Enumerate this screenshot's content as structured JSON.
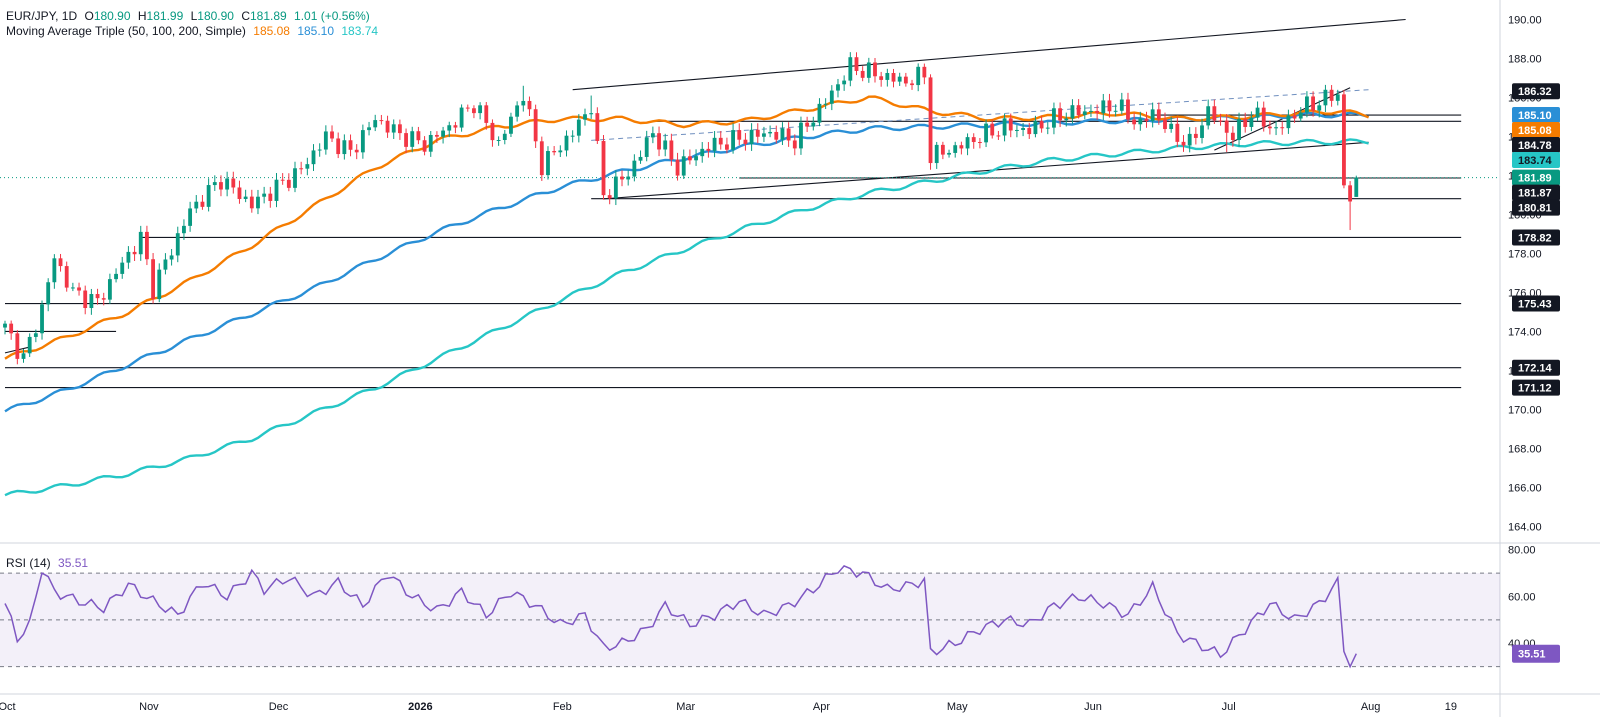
{
  "header": {
    "symbol": "EUR/JPY, 1D",
    "open_label": "O",
    "open": "180.90",
    "high_label": "H",
    "high": "181.99",
    "low_label": "L",
    "low": "180.90",
    "close_label": "C",
    "close": "181.89",
    "change": "1.01 (+0.56%)",
    "ma_title": "Moving Average Triple (50, 100, 200, Simple)",
    "ma50": "185.08",
    "ma100": "185.10",
    "ma200": "183.74",
    "rsi_title": "RSI (14)",
    "rsi": "35.51"
  },
  "colors": {
    "up": "#089981",
    "down": "#f23645",
    "ma50": "#f57c00",
    "ma100": "#2a8fd6",
    "ma200": "#26c6c6",
    "rsi": "#7e57c2",
    "trend": "#131722",
    "channel_mid": "#6f8fbf"
  },
  "chart_data": {
    "type": "candlestick",
    "y_ticks": [
      "190.00",
      "188.00",
      "186.00",
      "184.00",
      "182.00",
      "180.00",
      "178.00",
      "176.00",
      "174.00",
      "172.00",
      "170.00",
      "168.00",
      "166.00",
      "164.00"
    ],
    "ylim": [
      163.2,
      191.0
    ],
    "x_labels": [
      {
        "label": "Oct",
        "bar": 0
      },
      {
        "label": "Nov",
        "bar": 23
      },
      {
        "label": "Dec",
        "bar": 44
      },
      {
        "label": "2026",
        "bar": 67
      },
      {
        "label": "Feb",
        "bar": 90
      },
      {
        "label": "Mar",
        "bar": 110
      },
      {
        "label": "Apr",
        "bar": 132
      },
      {
        "label": "May",
        "bar": 154
      },
      {
        "label": "Jun",
        "bar": 176
      },
      {
        "label": "Jul",
        "bar": 198
      },
      {
        "label": "Aug",
        "bar": 221
      },
      {
        "label": "19",
        "bar": 234
      }
    ],
    "bar_count": 236,
    "price_anchors": [
      [
        0,
        174.2
      ],
      [
        3,
        172.6
      ],
      [
        6,
        175.2
      ],
      [
        8,
        177.8
      ],
      [
        11,
        176.0
      ],
      [
        15,
        175.5
      ],
      [
        19,
        177.5
      ],
      [
        22,
        178.8
      ],
      [
        24,
        176.2
      ],
      [
        30,
        180.2
      ],
      [
        35,
        181.8
      ],
      [
        40,
        180.5
      ],
      [
        48,
        182.3
      ],
      [
        52,
        184.0
      ],
      [
        56,
        183.2
      ],
      [
        60,
        184.9
      ],
      [
        64,
        184.1
      ],
      [
        68,
        183.6
      ],
      [
        72,
        184.5
      ],
      [
        76,
        185.7
      ],
      [
        80,
        183.6
      ],
      [
        84,
        186.2
      ],
      [
        87,
        182.5
      ],
      [
        92,
        184.2
      ],
      [
        95,
        185.6
      ],
      [
        97,
        181.0
      ],
      [
        101,
        182.1
      ],
      [
        105,
        184.2
      ],
      [
        109,
        182.4
      ],
      [
        114,
        183.5
      ],
      [
        119,
        183.9
      ],
      [
        124,
        184.2
      ],
      [
        128,
        183.8
      ],
      [
        133,
        185.8
      ],
      [
        137,
        187.6
      ],
      [
        141,
        187.2
      ],
      [
        146,
        186.8
      ],
      [
        149,
        187.2
      ],
      [
        150,
        183.0
      ],
      [
        154,
        183.4
      ],
      [
        158,
        184.0
      ],
      [
        162,
        184.5
      ],
      [
        166,
        184.3
      ],
      [
        172,
        185.2
      ],
      [
        176,
        185.3
      ],
      [
        180,
        185.6
      ],
      [
        184,
        184.6
      ],
      [
        186,
        185.3
      ],
      [
        189,
        184.2
      ],
      [
        192,
        183.6
      ],
      [
        195,
        185.3
      ],
      [
        199,
        184.0
      ],
      [
        202,
        185.2
      ],
      [
        206,
        184.3
      ],
      [
        210,
        185.4
      ],
      [
        213,
        185.8
      ],
      [
        216,
        186.2
      ],
      [
        217,
        181.4
      ],
      [
        218,
        180.8
      ],
      [
        219,
        181.89
      ]
    ],
    "candle_wick_spikes": [
      [
        84,
        186.6
      ],
      [
        150,
        186.2
      ],
      [
        198,
        183.2
      ],
      [
        218,
        179.2
      ],
      [
        3,
        173.1
      ],
      [
        95,
        186.1
      ]
    ],
    "ma50": [
      [
        0,
        172.6
      ],
      [
        10,
        173.7
      ],
      [
        20,
        175.0
      ],
      [
        30,
        176.6
      ],
      [
        40,
        178.4
      ],
      [
        50,
        180.4
      ],
      [
        60,
        182.4
      ],
      [
        70,
        183.8
      ],
      [
        80,
        184.5
      ],
      [
        90,
        184.9
      ],
      [
        100,
        184.9
      ],
      [
        110,
        184.6
      ],
      [
        120,
        184.8
      ],
      [
        130,
        185.4
      ],
      [
        140,
        186.0
      ],
      [
        150,
        185.3
      ],
      [
        160,
        184.9
      ],
      [
        170,
        185.0
      ],
      [
        180,
        185.2
      ],
      [
        190,
        184.9
      ],
      [
        200,
        185.0
      ],
      [
        210,
        185.2
      ],
      [
        216,
        185.3
      ],
      [
        221,
        185.08
      ]
    ],
    "ma100": [
      [
        0,
        169.9
      ],
      [
        10,
        171.0
      ],
      [
        20,
        172.3
      ],
      [
        30,
        173.6
      ],
      [
        40,
        174.9
      ],
      [
        50,
        176.2
      ],
      [
        60,
        177.7
      ],
      [
        70,
        179.1
      ],
      [
        80,
        180.3
      ],
      [
        90,
        181.4
      ],
      [
        100,
        182.2
      ],
      [
        110,
        182.9
      ],
      [
        120,
        183.5
      ],
      [
        130,
        184.0
      ],
      [
        140,
        184.4
      ],
      [
        150,
        184.5
      ],
      [
        160,
        184.6
      ],
      [
        170,
        184.7
      ],
      [
        180,
        184.8
      ],
      [
        190,
        184.9
      ],
      [
        200,
        184.95
      ],
      [
        210,
        185.1
      ],
      [
        221,
        185.1
      ]
    ],
    "ma200": [
      [
        0,
        165.6
      ],
      [
        10,
        166.1
      ],
      [
        20,
        166.7
      ],
      [
        30,
        167.5
      ],
      [
        40,
        168.5
      ],
      [
        50,
        169.8
      ],
      [
        60,
        171.1
      ],
      [
        70,
        172.6
      ],
      [
        80,
        174.1
      ],
      [
        90,
        175.6
      ],
      [
        100,
        177.0
      ],
      [
        110,
        178.2
      ],
      [
        120,
        179.3
      ],
      [
        130,
        180.3
      ],
      [
        140,
        181.1
      ],
      [
        150,
        181.7
      ],
      [
        160,
        182.3
      ],
      [
        170,
        182.8
      ],
      [
        180,
        183.1
      ],
      [
        190,
        183.4
      ],
      [
        200,
        183.6
      ],
      [
        210,
        183.7
      ],
      [
        221,
        183.74
      ]
    ],
    "trendlines": [
      {
        "from": [
          0,
          172.9
        ],
        "to": [
          4,
          173.2
        ]
      },
      {
        "from": [
          0,
          174.0
        ],
        "to": [
          18,
          174.0
        ]
      },
      {
        "from": [
          22,
          178.82
        ],
        "to": [
          236,
          178.82
        ]
      },
      {
        "from": [
          95,
          180.81
        ],
        "to": [
          236,
          180.81
        ]
      },
      {
        "from": [
          119,
          181.87
        ],
        "to": [
          236,
          181.87
        ]
      },
      {
        "from": [
          105,
          184.78
        ],
        "to": [
          236,
          184.78
        ]
      },
      {
        "from": [
          186,
          185.1
        ],
        "to": [
          236,
          185.1
        ]
      },
      {
        "from": [
          0,
          175.43
        ],
        "to": [
          236,
          175.43
        ]
      },
      {
        "from": [
          0,
          172.14
        ],
        "to": [
          236,
          172.14
        ]
      },
      {
        "from": [
          0,
          171.12
        ],
        "to": [
          236,
          171.12
        ]
      },
      {
        "from": [
          92,
          186.4
        ],
        "to": [
          227,
          190.0
        ]
      },
      {
        "from": [
          97,
          180.8
        ],
        "to": [
          221,
          183.7
        ]
      },
      {
        "from": [
          196,
          183.3
        ],
        "to": [
          218,
          186.5
        ]
      }
    ],
    "channel_mid": {
      "from": [
        95,
        183.8
      ],
      "to": [
        221,
        186.4
      ]
    },
    "price_badges": [
      {
        "label": "186.32",
        "value": 186.32,
        "kind": "dark"
      },
      {
        "label": "185.10",
        "value": 185.1,
        "kind": "ma100"
      },
      {
        "label": "185.08",
        "value": 185.08,
        "kind": "ma50"
      },
      {
        "label": "184.78",
        "value": 184.78,
        "kind": "dark"
      },
      {
        "label": "183.74",
        "value": 183.74,
        "kind": "ma200"
      },
      {
        "label": "181.89",
        "value": 181.89,
        "kind": "close"
      },
      {
        "label": "181.87",
        "value": 181.87,
        "kind": "dark"
      },
      {
        "label": "180.81",
        "value": 180.81,
        "kind": "dark"
      },
      {
        "label": "178.82",
        "value": 178.82,
        "kind": "dark"
      },
      {
        "label": "175.43",
        "value": 175.43,
        "kind": "dark"
      },
      {
        "label": "172.14",
        "value": 172.14,
        "kind": "dark"
      },
      {
        "label": "171.12",
        "value": 171.12,
        "kind": "dark"
      }
    ],
    "rsi": {
      "y_ticks": [
        "80.00",
        "60.00",
        "40.00"
      ],
      "ylim": [
        20,
        82
      ],
      "levels": [
        70,
        50,
        30
      ],
      "values": [
        [
          0,
          57
        ],
        [
          2,
          42
        ],
        [
          4,
          48
        ],
        [
          6,
          72
        ],
        [
          8,
          62
        ],
        [
          12,
          58
        ],
        [
          16,
          55
        ],
        [
          20,
          65
        ],
        [
          24,
          58
        ],
        [
          28,
          52
        ],
        [
          32,
          66
        ],
        [
          36,
          60
        ],
        [
          40,
          70
        ],
        [
          42,
          63
        ],
        [
          46,
          68
        ],
        [
          50,
          60
        ],
        [
          54,
          66
        ],
        [
          58,
          56
        ],
        [
          62,
          70
        ],
        [
          66,
          60
        ],
        [
          70,
          54
        ],
        [
          74,
          62
        ],
        [
          78,
          52
        ],
        [
          82,
          62
        ],
        [
          86,
          56
        ],
        [
          90,
          48
        ],
        [
          94,
          52
        ],
        [
          97,
          38
        ],
        [
          100,
          40
        ],
        [
          104,
          46
        ],
        [
          107,
          56
        ],
        [
          111,
          48
        ],
        [
          115,
          52
        ],
        [
          119,
          58
        ],
        [
          123,
          52
        ],
        [
          127,
          56
        ],
        [
          131,
          63
        ],
        [
          135,
          72
        ],
        [
          139,
          70
        ],
        [
          143,
          63
        ],
        [
          147,
          65
        ],
        [
          149,
          67
        ],
        [
          150,
          36
        ],
        [
          154,
          40
        ],
        [
          158,
          46
        ],
        [
          162,
          50
        ],
        [
          166,
          48
        ],
        [
          170,
          56
        ],
        [
          174,
          60
        ],
        [
          178,
          57
        ],
        [
          182,
          52
        ],
        [
          186,
          64
        ],
        [
          190,
          44
        ],
        [
          193,
          40
        ],
        [
          197,
          35
        ],
        [
          201,
          46
        ],
        [
          205,
          57
        ],
        [
          209,
          50
        ],
        [
          213,
          57
        ],
        [
          216,
          66
        ],
        [
          217,
          38
        ],
        [
          218,
          31
        ],
        [
          219,
          35.51
        ]
      ]
    }
  }
}
